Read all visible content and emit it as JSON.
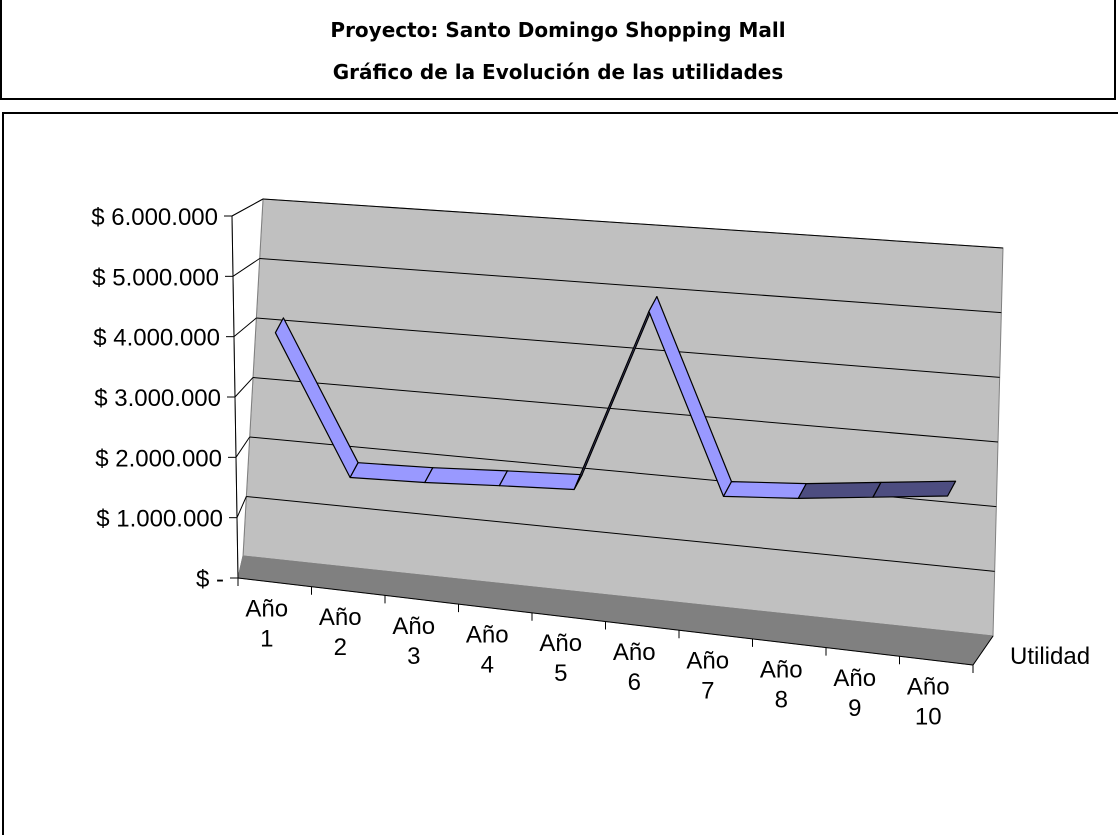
{
  "header": {
    "title": "Proyecto: Santo Domingo Shopping Mall",
    "subtitle": "Gráfico de la Evolución de las utilidades"
  },
  "chart_data": {
    "type": "line",
    "style": "3d",
    "categories": [
      "Año 1",
      "Año 2",
      "Año 3",
      "Año 4",
      "Año 5",
      "Año 6",
      "Año 7",
      "Año 8",
      "Año 9",
      "Año 10"
    ],
    "series": [
      {
        "name": "Utilidad",
        "values": [
          3900000,
          1700000,
          1750000,
          1830000,
          1900000,
          4900000,
          2050000,
          2150000,
          2300000,
          2450000
        ]
      }
    ],
    "ylim": [
      0,
      6000000
    ],
    "yticks": [
      0,
      1000000,
      2000000,
      3000000,
      4000000,
      5000000,
      6000000
    ],
    "ytick_labels": [
      "$ -",
      "$ 1.000.000",
      "$ 2.000.000",
      "$ 3.000.000",
      "$ 4.000.000",
      "$ 5.000.000",
      "$ 6.000.000"
    ],
    "xtick_lines": [
      [
        "Año",
        "1"
      ],
      [
        "Año",
        "2"
      ],
      [
        "Año",
        "3"
      ],
      [
        "Año",
        "4"
      ],
      [
        "Año",
        "5"
      ],
      [
        "Año",
        "6"
      ],
      [
        "Año",
        "7"
      ],
      [
        "Año",
        "8"
      ],
      [
        "Año",
        "9"
      ],
      [
        "Año",
        "10"
      ]
    ],
    "grid": true,
    "colors": {
      "wall": "#c0c0c0",
      "floor": "#808080",
      "ribbon_top": "#9999ff",
      "ribbon_side": "#4d4d80",
      "grid": "#000000"
    }
  }
}
